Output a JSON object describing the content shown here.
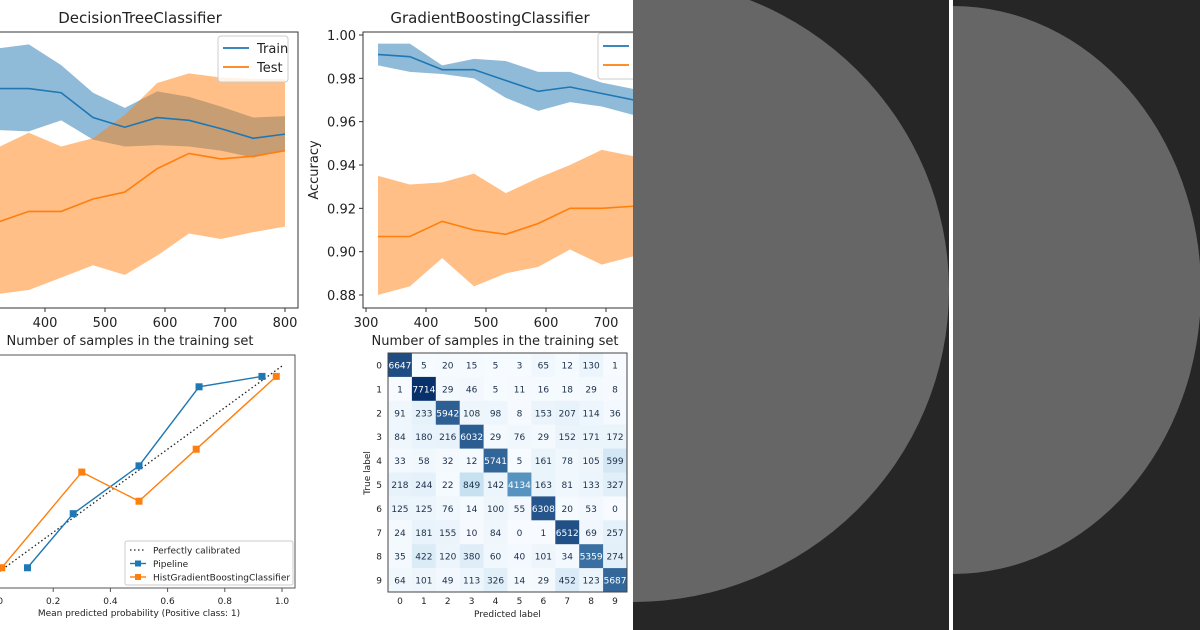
{
  "colors": {
    "train": "#1f77b4",
    "test": "#ff7f0e",
    "panel_bg": "#262626",
    "disc": "#666666",
    "cm_low": "#f7fbff",
    "cm_high": "#08306b"
  },
  "chart_data": [
    {
      "type": "line",
      "title": "DecisionTreeClassifier",
      "xlabel": "Number of samples in the training set",
      "ylabel": "",
      "x_ticks": [
        400,
        500,
        600,
        700,
        800
      ],
      "ylim": [
        0.8,
        1.0
      ],
      "legend": {
        "placement": "top-right",
        "entries": [
          "Train",
          "Test"
        ]
      },
      "x": [
        320,
        373,
        427,
        480,
        533,
        587,
        640,
        693,
        747,
        800
      ],
      "series": [
        {
          "name": "Train",
          "values": [
            0.959,
            0.959,
            0.956,
            0.938,
            0.931,
            0.938,
            0.936,
            0.93,
            0.923,
            0.926
          ],
          "upper": [
            0.988,
            0.991,
            0.976,
            0.956,
            0.945,
            0.957,
            0.953,
            0.946,
            0.938,
            0.939
          ],
          "lower": [
            0.929,
            0.928,
            0.936,
            0.922,
            0.917,
            0.918,
            0.917,
            0.914,
            0.909,
            0.914
          ]
        },
        {
          "name": "Test",
          "values": [
            0.862,
            0.87,
            0.87,
            0.879,
            0.884,
            0.901,
            0.912,
            0.908,
            0.91,
            0.914
          ],
          "upper": [
            0.916,
            0.927,
            0.917,
            0.923,
            0.94,
            0.963,
            0.97,
            0.967,
            0.966,
            0.966
          ],
          "lower": [
            0.81,
            0.813,
            0.822,
            0.831,
            0.824,
            0.838,
            0.854,
            0.85,
            0.855,
            0.859
          ]
        }
      ]
    },
    {
      "type": "line",
      "title": "GradientBoostingClassifier",
      "xlabel": "Number of samples in the training set",
      "ylabel": "Accuracy",
      "x_ticks": [
        300,
        400,
        500,
        600,
        700
      ],
      "y_ticks": [
        "0.88",
        "0.90",
        "0.92",
        "0.94",
        "0.96",
        "0.98",
        "1.00"
      ],
      "ylim": [
        0.873,
        1.005
      ],
      "legend": {
        "placement": "top-right"
      },
      "x": [
        320,
        373,
        427,
        480,
        533,
        587,
        640,
        693,
        747
      ],
      "series": [
        {
          "name": "Train",
          "values": [
            0.991,
            0.99,
            0.984,
            0.984,
            0.979,
            0.974,
            0.976,
            0.973,
            0.97
          ],
          "upper": [
            0.996,
            0.996,
            0.986,
            0.989,
            0.988,
            0.983,
            0.983,
            0.978,
            0.975
          ],
          "lower": [
            0.986,
            0.983,
            0.982,
            0.98,
            0.971,
            0.965,
            0.969,
            0.967,
            0.963
          ]
        },
        {
          "name": "Test",
          "values": [
            0.907,
            0.907,
            0.914,
            0.91,
            0.908,
            0.913,
            0.92,
            0.92,
            0.921
          ],
          "upper": [
            0.935,
            0.931,
            0.932,
            0.936,
            0.927,
            0.934,
            0.94,
            0.947,
            0.944
          ],
          "lower": [
            0.88,
            0.884,
            0.897,
            0.884,
            0.89,
            0.893,
            0.901,
            0.894,
            0.898
          ]
        }
      ]
    },
    {
      "type": "line",
      "title": "",
      "xlabel": "Mean predicted probability (Positive class: 1)",
      "x_ticks": [
        "0.0",
        "0.2",
        "0.4",
        "0.6",
        "0.8",
        "1.0"
      ],
      "xlim": [
        0,
        1
      ],
      "legend": {
        "placement": "bottom-right",
        "entries": [
          "Perfectly calibrated",
          "Pipeline",
          "HistGradientBoostingClassifier"
        ]
      },
      "series": [
        {
          "name": "Perfectly calibrated",
          "x": [
            0,
            1
          ],
          "y": [
            0,
            1
          ],
          "style": "dotted",
          "color": "#222222"
        },
        {
          "name": "Pipeline",
          "x": [
            0.11,
            0.27,
            0.5,
            0.71,
            0.93
          ],
          "y": [
            0.03,
            0.29,
            0.52,
            0.9,
            0.95
          ],
          "color": "#1f77b4"
        },
        {
          "name": "HistGradientBoostingClassifier",
          "x": [
            0.02,
            0.3,
            0.5,
            0.7,
            0.98
          ],
          "y": [
            0.03,
            0.49,
            0.35,
            0.6,
            0.95
          ],
          "color": "#ff7f0e"
        }
      ]
    },
    {
      "type": "heatmap",
      "title": "",
      "xlabel": "Predicted label",
      "ylabel": "True label",
      "labels": [
        "0",
        "1",
        "2",
        "3",
        "4",
        "5",
        "6",
        "7",
        "8",
        "9"
      ],
      "colormap": "Blues",
      "matrix": [
        [
          6647,
          5,
          20,
          15,
          5,
          3,
          65,
          12,
          130,
          1
        ],
        [
          1,
          7714,
          29,
          46,
          5,
          11,
          16,
          18,
          29,
          8
        ],
        [
          91,
          233,
          5942,
          108,
          98,
          8,
          153,
          207,
          114,
          36
        ],
        [
          84,
          180,
          216,
          6032,
          29,
          76,
          29,
          152,
          171,
          172
        ],
        [
          33,
          58,
          32,
          12,
          5741,
          5,
          161,
          78,
          105,
          599
        ],
        [
          218,
          244,
          22,
          849,
          142,
          4134,
          163,
          81,
          133,
          327
        ],
        [
          125,
          125,
          76,
          14,
          100,
          55,
          6308,
          20,
          53,
          0
        ],
        [
          24,
          181,
          155,
          10,
          84,
          0,
          1,
          6512,
          69,
          257
        ],
        [
          35,
          422,
          120,
          380,
          60,
          40,
          101,
          34,
          5359,
          274
        ],
        [
          64,
          101,
          49,
          113,
          326,
          14,
          29,
          452,
          123,
          5687
        ]
      ]
    }
  ]
}
